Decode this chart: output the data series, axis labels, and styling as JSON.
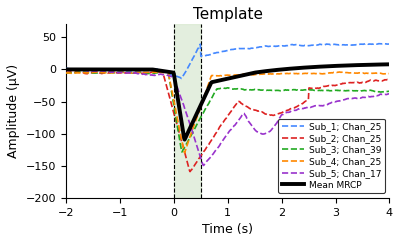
{
  "title": "Template",
  "xlabel": "Time (s)",
  "ylabel": "Amplitude (μV)",
  "xlim": [
    -2,
    4
  ],
  "ylim": [
    -200,
    70
  ],
  "yticks": [
    -200,
    -150,
    -100,
    -50,
    0,
    50
  ],
  "xticks": [
    -2,
    -1,
    0,
    1,
    2,
    3,
    4
  ],
  "template_region": [
    0,
    0.5
  ],
  "background_color": "#ffffff",
  "series": [
    {
      "label": "Sub_1; Chan_25",
      "color": "#4488ff",
      "lw": 1.2
    },
    {
      "label": "Sub_2; Chan_25",
      "color": "#dd2222",
      "lw": 1.2
    },
    {
      "label": "Sub_3; Chan_39",
      "color": "#22aa22",
      "lw": 1.2
    },
    {
      "label": "Sub_4; Chan_25",
      "color": "#ff8800",
      "lw": 1.2
    },
    {
      "label": "Sub_5; Chan_17",
      "color": "#9933cc",
      "lw": 1.2
    },
    {
      "label": "Mean MRCP",
      "color": "#000000",
      "lw": 2.8
    }
  ]
}
